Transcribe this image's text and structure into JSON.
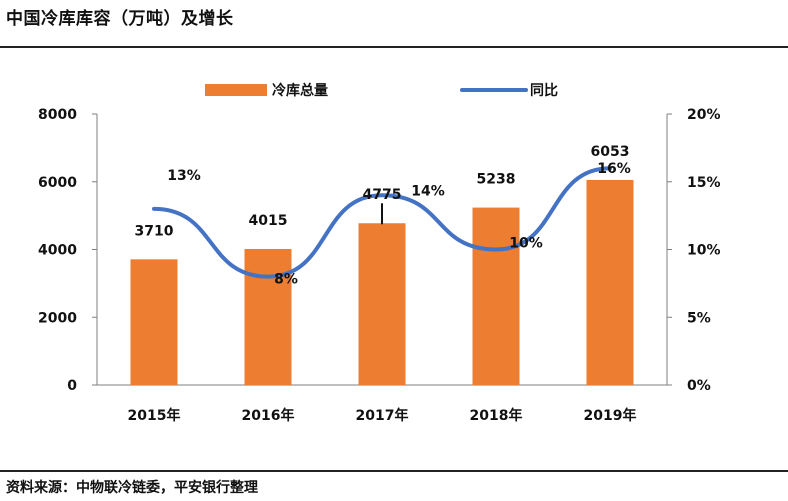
{
  "header": {
    "title": "中国冷库库容（万吨）及增长"
  },
  "footer": {
    "source": "资料来源：中物联冷链委，平安银行整理"
  },
  "chart_data": {
    "type": "bar",
    "title": "中国冷库库容（万吨）及增长",
    "categories": [
      "2015年",
      "2016年",
      "2017年",
      "2018年",
      "2019年"
    ],
    "series": [
      {
        "name": "冷库总量",
        "kind": "bar",
        "axis": "left",
        "values": [
          3710,
          4015,
          4775,
          5238,
          6053
        ],
        "labels": [
          "3710",
          "4015",
          "4775",
          "5238",
          "6053"
        ],
        "color": "#ED7D31"
      },
      {
        "name": "同比",
        "kind": "line",
        "axis": "right",
        "values": [
          13,
          8,
          14,
          10,
          16
        ],
        "labels": [
          "13%",
          "8%",
          "14%",
          "10%",
          "16%"
        ],
        "color": "#4472C4"
      }
    ],
    "left_axis": {
      "range": [
        0,
        8000
      ],
      "ticks": [
        "0",
        "2000",
        "4000",
        "6000",
        "8000"
      ]
    },
    "right_axis": {
      "range": [
        0,
        20
      ],
      "ticks": [
        "0%",
        "5%",
        "10%",
        "15%",
        "20%"
      ]
    },
    "legend_position": "top-center",
    "grid": false
  }
}
